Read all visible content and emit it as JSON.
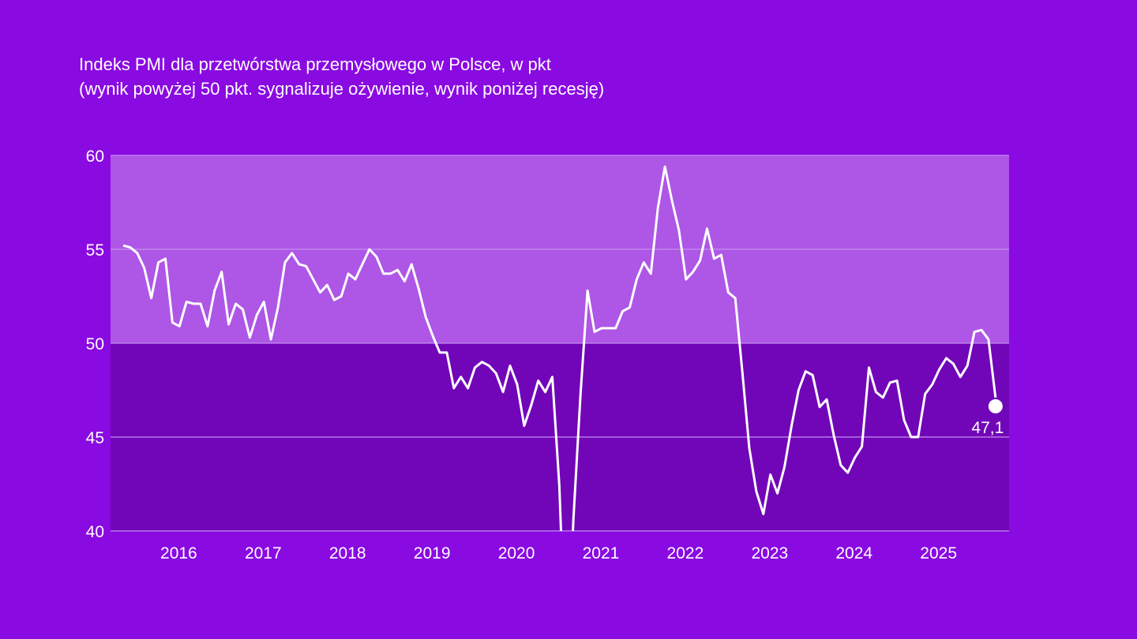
{
  "colors": {
    "background": "#8a0ae2",
    "band_above_50": "#ae56e6",
    "band_below_50": "#7106b8",
    "line": "#ffffff",
    "gridline": "#c58ef0"
  },
  "chart_data": {
    "type": "line",
    "title": "Indeks PMI dla przetwórstwa przemysłowego w Polsce, w pkt",
    "subtitle": "(wynik powyżej 50 pkt. sygnalizuje ożywienie, wynik poniżej recesję)",
    "xlabel": "",
    "ylabel": "",
    "ylim": [
      40,
      60
    ],
    "yticks": [
      "40",
      "45",
      "50",
      "55",
      "60"
    ],
    "xtick_labels": [
      "2016",
      "2017",
      "2018",
      "2019",
      "2020",
      "2021",
      "2022",
      "2023",
      "2024",
      "2025"
    ],
    "grid": "horizontal",
    "threshold": 50,
    "x_start": "2015-01",
    "x_end": "2025-05",
    "frequency": "monthly",
    "values": [
      55.2,
      55.1,
      54.8,
      54.0,
      52.4,
      54.3,
      54.5,
      51.1,
      50.9,
      52.2,
      52.1,
      52.1,
      50.9,
      52.8,
      53.8,
      51.0,
      52.1,
      51.8,
      50.3,
      51.5,
      52.2,
      50.2,
      51.9,
      54.3,
      54.8,
      54.2,
      54.1,
      53.4,
      52.7,
      53.1,
      52.3,
      52.5,
      53.7,
      53.4,
      54.2,
      55.0,
      54.6,
      53.7,
      53.7,
      53.9,
      53.3,
      54.2,
      52.9,
      51.4,
      50.4,
      49.5,
      49.5,
      47.6,
      48.2,
      47.6,
      48.7,
      49.0,
      48.8,
      48.4,
      47.4,
      48.8,
      47.8,
      45.6,
      46.7,
      48.0,
      47.4,
      48.2,
      42.4,
      31.9,
      40.6,
      47.2,
      52.8,
      50.6,
      50.8,
      50.8,
      50.8,
      51.7,
      51.9,
      53.4,
      54.3,
      53.7,
      57.2,
      59.4,
      57.6,
      56.0,
      53.4,
      53.8,
      54.4,
      56.1,
      54.5,
      54.7,
      52.7,
      52.4,
      48.5,
      44.4,
      42.1,
      40.9,
      43.0,
      42.0,
      43.4,
      45.6,
      47.5,
      48.5,
      48.3,
      46.6,
      47.0,
      45.1,
      43.5,
      43.1,
      43.9,
      44.5,
      48.7,
      47.4,
      47.1,
      47.9,
      48.0,
      45.9,
      45.0,
      45.0,
      47.3,
      47.8,
      48.6,
      49.2,
      48.9,
      48.2,
      48.8,
      50.6,
      50.7,
      50.2,
      47.1
    ],
    "last_value_label": "47,1"
  }
}
